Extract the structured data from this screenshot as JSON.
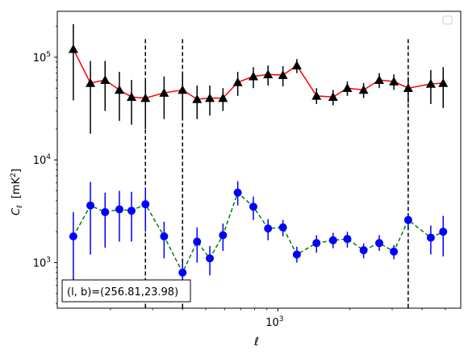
{
  "chart_data": {
    "type": "line",
    "xlabel": "ℓ",
    "ylabel": "C",
    "ylabel_sub": "ℓ",
    "ylabel_unit": "[mK",
    "ylabel_unit_sup": "2",
    "ylabel_unit_close": "]",
    "x_scale": "log",
    "y_scale": "log",
    "xlim": [
      120,
      5800
    ],
    "ylim": [
      360,
      280000
    ],
    "x_ticks": [
      {
        "value": 1000,
        "base": "10",
        "exp": "3"
      }
    ],
    "y_ticks": [
      {
        "value": 1000,
        "base": "10",
        "exp": "3"
      },
      {
        "value": 10000,
        "base": "10",
        "exp": "4"
      },
      {
        "value": 100000,
        "base": "10",
        "exp": "5"
      }
    ],
    "grid": false,
    "legend_placement": "upper right (empty)",
    "annotation": {
      "text": "(l, b)=(256.81,23.98)",
      "placement": "lower-left"
    },
    "vlines": [
      {
        "x": 280,
        "y_range": [
          360,
          150000
        ],
        "style": "dashed",
        "color": "#000000"
      },
      {
        "x": 400,
        "y_range": [
          360,
          150000
        ],
        "style": "dashed",
        "color": "#000000"
      },
      {
        "x": 3500,
        "y_range": [
          360,
          150000
        ],
        "style": "dashed",
        "color": "#000000"
      }
    ],
    "series": [
      {
        "color": "#ff0000",
        "marker": "triangle",
        "marker_color": "#000000",
        "line_style": "solid",
        "errorbar_color": "#000000",
        "points": [
          {
            "x": 140,
            "y": 120000,
            "lo": 38000,
            "hi": 210000
          },
          {
            "x": 165,
            "y": 56000,
            "lo": 18000,
            "hi": 92000
          },
          {
            "x": 190,
            "y": 60000,
            "lo": 30000,
            "hi": 92000
          },
          {
            "x": 218,
            "y": 48000,
            "lo": 24000,
            "hi": 72000
          },
          {
            "x": 245,
            "y": 41000,
            "lo": 22000,
            "hi": 60000
          },
          {
            "x": 280,
            "y": 40000,
            "lo": 20000,
            "hi": 60000
          },
          {
            "x": 335,
            "y": 45000,
            "lo": 25000,
            "hi": 65000
          },
          {
            "x": 400,
            "y": 48000,
            "lo": 25000,
            "hi": 72000
          },
          {
            "x": 460,
            "y": 39000,
            "lo": 25000,
            "hi": 53000
          },
          {
            "x": 520,
            "y": 40000,
            "lo": 27000,
            "hi": 53000
          },
          {
            "x": 590,
            "y": 40000,
            "lo": 30000,
            "hi": 50000
          },
          {
            "x": 680,
            "y": 57000,
            "lo": 42000,
            "hi": 72000
          },
          {
            "x": 790,
            "y": 65000,
            "lo": 50000,
            "hi": 80000
          },
          {
            "x": 910,
            "y": 68000,
            "lo": 53000,
            "hi": 83000
          },
          {
            "x": 1050,
            "y": 67000,
            "lo": 52000,
            "hi": 82000
          },
          {
            "x": 1200,
            "y": 83000,
            "lo": 70000,
            "hi": 96000
          },
          {
            "x": 1450,
            "y": 42000,
            "lo": 35000,
            "hi": 50000
          },
          {
            "x": 1700,
            "y": 41000,
            "lo": 34000,
            "hi": 48000
          },
          {
            "x": 1950,
            "y": 50000,
            "lo": 42000,
            "hi": 58000
          },
          {
            "x": 2280,
            "y": 48000,
            "lo": 40000,
            "hi": 56000
          },
          {
            "x": 2650,
            "y": 60000,
            "lo": 50000,
            "hi": 70000
          },
          {
            "x": 3050,
            "y": 58000,
            "lo": 48000,
            "hi": 68000
          },
          {
            "x": 3500,
            "y": 50000,
            "lo": 36000,
            "hi": 64000
          },
          {
            "x": 4350,
            "y": 55000,
            "lo": 35000,
            "hi": 75000
          },
          {
            "x": 4900,
            "y": 56000,
            "lo": 32000,
            "hi": 80000
          }
        ]
      },
      {
        "color": "#008000",
        "marker": "circle",
        "marker_color": "#0000ff",
        "line_style": "dashed",
        "errorbar_color": "#0000ff",
        "points": [
          {
            "x": 140,
            "y": 1800,
            "lo": 600,
            "hi": 3100
          },
          {
            "x": 165,
            "y": 3600,
            "lo": 1200,
            "hi": 6100
          },
          {
            "x": 190,
            "y": 3100,
            "lo": 1400,
            "hi": 4800
          },
          {
            "x": 218,
            "y": 3300,
            "lo": 1600,
            "hi": 5000
          },
          {
            "x": 245,
            "y": 3200,
            "lo": 1600,
            "hi": 4900
          },
          {
            "x": 280,
            "y": 3700,
            "lo": 2000,
            "hi": 5400
          },
          {
            "x": 335,
            "y": 1800,
            "lo": 1100,
            "hi": 2500
          },
          {
            "x": 400,
            "y": 800,
            "lo": 600,
            "hi": 1000
          },
          {
            "x": 460,
            "y": 1600,
            "lo": 1000,
            "hi": 2200
          },
          {
            "x": 520,
            "y": 1100,
            "lo": 750,
            "hi": 1450
          },
          {
            "x": 590,
            "y": 1850,
            "lo": 1300,
            "hi": 2400
          },
          {
            "x": 680,
            "y": 4800,
            "lo": 3600,
            "hi": 6200
          },
          {
            "x": 790,
            "y": 3500,
            "lo": 2600,
            "hi": 4400
          },
          {
            "x": 910,
            "y": 2150,
            "lo": 1650,
            "hi": 2650
          },
          {
            "x": 1050,
            "y": 2200,
            "lo": 1800,
            "hi": 2600
          },
          {
            "x": 1200,
            "y": 1200,
            "lo": 1000,
            "hi": 1430
          },
          {
            "x": 1450,
            "y": 1550,
            "lo": 1250,
            "hi": 1850
          },
          {
            "x": 1700,
            "y": 1650,
            "lo": 1380,
            "hi": 1950
          },
          {
            "x": 1950,
            "y": 1700,
            "lo": 1400,
            "hi": 2000
          },
          {
            "x": 2280,
            "y": 1320,
            "lo": 1100,
            "hi": 1540
          },
          {
            "x": 2650,
            "y": 1550,
            "lo": 1300,
            "hi": 1850
          },
          {
            "x": 3050,
            "y": 1280,
            "lo": 1080,
            "hi": 1480
          },
          {
            "x": 3500,
            "y": 2600,
            "lo": 2150,
            "hi": 3050
          },
          {
            "x": 4350,
            "y": 1750,
            "lo": 1200,
            "hi": 2300
          },
          {
            "x": 4900,
            "y": 2000,
            "lo": 1150,
            "hi": 2850
          }
        ]
      }
    ]
  }
}
